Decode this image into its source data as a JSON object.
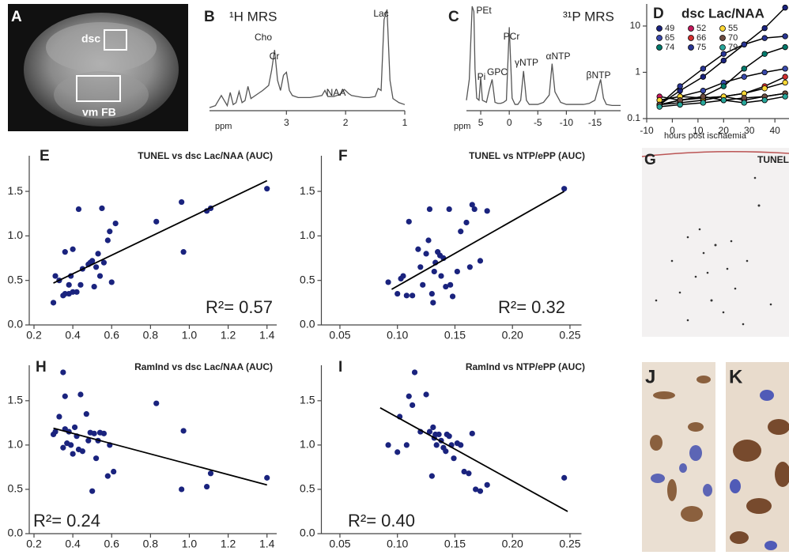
{
  "chart_data": [
    {
      "type": "line",
      "label": "B",
      "title": "¹H MRS",
      "color": "#555555",
      "x": [
        4.3,
        4.2,
        4.1,
        4.0,
        3.95,
        3.9,
        3.85,
        3.8,
        3.75,
        3.7,
        3.65,
        3.6,
        3.5,
        3.4,
        3.3,
        3.25,
        3.2,
        3.15,
        3.1,
        3.05,
        3.0,
        2.95,
        2.9,
        2.8,
        2.7,
        2.6,
        2.5,
        2.4,
        2.35,
        2.3,
        2.2,
        2.1,
        2.02,
        1.95,
        1.9,
        1.8,
        1.7,
        1.6,
        1.5,
        1.45,
        1.4,
        1.35,
        1.3,
        1.25,
        1.2,
        1.1,
        1.0
      ],
      "values": [
        0.03,
        0.05,
        0.15,
        0.05,
        0.18,
        0.06,
        0.08,
        0.19,
        0.08,
        0.1,
        0.24,
        0.12,
        0.16,
        0.2,
        0.25,
        0.4,
        0.6,
        0.3,
        0.2,
        0.35,
        0.38,
        0.2,
        0.15,
        0.13,
        0.13,
        0.13,
        0.14,
        0.15,
        0.2,
        0.14,
        0.14,
        0.16,
        0.21,
        0.17,
        0.15,
        0.14,
        0.13,
        0.13,
        0.14,
        0.22,
        0.2,
        0.9,
        1.0,
        0.3,
        0.12,
        0.08,
        0.06
      ],
      "xlim": [
        4.3,
        1.0
      ],
      "xticks": [
        3,
        2,
        1
      ],
      "ylim": [
        0,
        1
      ],
      "xlabel": "ppm",
      "annotations": [
        "Cho",
        "Cr",
        "NAA",
        "Lac"
      ]
    },
    {
      "type": "line",
      "label": "C",
      "title": "³¹P MRS",
      "color": "#555555",
      "x": [
        7.5,
        7,
        6.5,
        6.2,
        6,
        5.7,
        5.3,
        5,
        4.7,
        4,
        3.5,
        3,
        2.5,
        2,
        1.5,
        1,
        0.5,
        0,
        -0.5,
        -1,
        -1.5,
        -2,
        -2.5,
        -3,
        -3.5,
        -4,
        -5,
        -6,
        -7,
        -7.5,
        -8,
        -9,
        -10,
        -11,
        -12,
        -13,
        -14,
        -15,
        -15.5,
        -16,
        -16.5,
        -17,
        -18,
        -19.5
      ],
      "values": [
        0.1,
        0.3,
        1.0,
        0.95,
        0.4,
        0.12,
        0.1,
        0.32,
        0.1,
        0.08,
        0.2,
        0.3,
        0.08,
        0.07,
        0.07,
        0.08,
        0.1,
        0.8,
        0.12,
        0.06,
        0.06,
        0.1,
        0.38,
        0.1,
        0.06,
        0.06,
        0.06,
        0.08,
        0.15,
        0.45,
        0.18,
        0.08,
        0.06,
        0.06,
        0.06,
        0.06,
        0.07,
        0.1,
        0.2,
        0.3,
        0.12,
        0.06,
        0.05,
        0.05
      ],
      "xlim": [
        7.5,
        -19.5
      ],
      "xticks": [
        5,
        0,
        -5,
        -10,
        -15
      ],
      "ylim": [
        0,
        1
      ],
      "xlabel": "ppm",
      "annotations": [
        "PEt",
        "Pi",
        "GPC",
        "PCr",
        "γNTP",
        "αNTP",
        "βNTP"
      ]
    },
    {
      "type": "line",
      "label": "D",
      "title": "dsc Lac/NAA",
      "log_y": true,
      "x": [
        -5,
        3,
        12,
        20,
        28,
        36,
        44
      ],
      "series": [
        {
          "name": "49",
          "color": "#1a237e",
          "values": [
            0.2,
            0.4,
            0.8,
            1.8,
            4,
            9,
            25
          ]
        },
        {
          "name": "65",
          "color": "#3949ab",
          "values": [
            0.25,
            0.3,
            0.4,
            0.6,
            0.8,
            1.0,
            1.2
          ]
        },
        {
          "name": "74",
          "color": "#00796b",
          "values": [
            0.2,
            0.25,
            0.3,
            0.5,
            1.2,
            2.5,
            3.5
          ]
        },
        {
          "name": "52",
          "color": "#c2185b",
          "values": [
            0.3,
            0.25,
            0.28,
            0.3,
            0.25,
            0.3,
            0.35
          ]
        },
        {
          "name": "66",
          "color": "#d32f2f",
          "values": [
            0.2,
            0.22,
            0.25,
            0.3,
            0.35,
            0.5,
            0.8
          ]
        },
        {
          "name": "75",
          "color": "#283593",
          "values": [
            0.2,
            0.5,
            1.2,
            2.5,
            4,
            5.5,
            6
          ]
        },
        {
          "name": "55",
          "color": "#fdd835",
          "values": [
            0.25,
            0.3,
            0.28,
            0.3,
            0.35,
            0.45,
            0.6
          ]
        },
        {
          "name": "70",
          "color": "#6d4c41",
          "values": [
            0.2,
            0.25,
            0.3,
            0.25,
            0.28,
            0.3,
            0.35
          ]
        },
        {
          "name": "79",
          "color": "#26a69a",
          "values": [
            0.18,
            0.2,
            0.22,
            0.25,
            0.22,
            0.25,
            0.3
          ]
        }
      ],
      "xlim": [
        -10,
        45.5
      ],
      "xticks": [
        -10,
        0,
        10,
        20,
        30,
        40
      ],
      "ylim": [
        0.1,
        30
      ],
      "yticks": [
        0.1,
        1,
        10
      ],
      "xlabel": "hours post ischaemia"
    },
    {
      "type": "scatter",
      "label": "E",
      "title": "TUNEL vs dsc Lac/NAA (AUC)",
      "color": "#1a237e",
      "x": [
        0.3,
        0.31,
        0.33,
        0.35,
        0.36,
        0.36,
        0.38,
        0.38,
        0.39,
        0.4,
        0.4,
        0.42,
        0.43,
        0.44,
        0.45,
        0.48,
        0.49,
        0.5,
        0.51,
        0.52,
        0.53,
        0.54,
        0.55,
        0.56,
        0.58,
        0.59,
        0.6,
        0.62,
        0.83,
        0.96,
        0.97,
        1.09,
        1.11,
        1.4
      ],
      "values": [
        0.25,
        0.55,
        0.5,
        0.33,
        0.82,
        0.35,
        0.35,
        0.45,
        0.55,
        0.37,
        0.85,
        0.37,
        1.3,
        0.45,
        0.63,
        0.68,
        0.7,
        0.72,
        0.43,
        0.65,
        0.8,
        0.55,
        1.31,
        0.7,
        0.95,
        1.05,
        0.48,
        1.14,
        1.16,
        1.38,
        0.82,
        1.28,
        1.31,
        1.53
      ],
      "fit": {
        "x": [
          0.3,
          1.4
        ],
        "values": [
          0.47,
          1.62
        ]
      },
      "xlim": [
        0.2,
        1.45
      ],
      "xticks": [
        0.2,
        0.4,
        0.6,
        0.8,
        {
          "value": 1,
          "label": "1.0"
        },
        1.2,
        1.4
      ],
      "ylim": [
        0,
        1.9
      ],
      "yticks": [
        {
          "value": 0,
          "label": "0.0"
        },
        0.5,
        {
          "value": 1,
          "label": "1.0"
        },
        1.5
      ],
      "annotation": "R²= 0.57"
    },
    {
      "type": "scatter",
      "label": "F",
      "title": "TUNEL vs NTP/ePP (AUC)",
      "color": "#1a237e",
      "x": [
        0.092,
        0.1,
        0.103,
        0.105,
        0.108,
        0.11,
        0.113,
        0.118,
        0.12,
        0.122,
        0.125,
        0.127,
        0.128,
        0.13,
        0.131,
        0.132,
        0.133,
        0.135,
        0.137,
        0.138,
        0.14,
        0.142,
        0.145,
        0.146,
        0.148,
        0.152,
        0.155,
        0.16,
        0.163,
        0.165,
        0.167,
        0.172,
        0.178,
        0.245
      ],
      "values": [
        0.48,
        0.35,
        0.52,
        0.55,
        0.33,
        1.16,
        0.33,
        0.85,
        0.65,
        0.45,
        0.8,
        0.95,
        1.3,
        0.35,
        0.25,
        0.6,
        0.7,
        0.82,
        0.78,
        0.55,
        0.75,
        0.43,
        1.3,
        0.45,
        0.32,
        0.6,
        1.05,
        1.15,
        0.65,
        1.35,
        1.3,
        0.72,
        1.28,
        1.53
      ],
      "fit": {
        "x": [
          0.095,
          0.245
        ],
        "values": [
          0.4,
          1.5
        ]
      },
      "xlim": [
        0.038,
        0.26
      ],
      "xticks": [
        0.05,
        {
          "value": 0.1,
          "label": "0.10"
        },
        0.15,
        {
          "value": 0.2,
          "label": "0.20"
        },
        0.25
      ],
      "ylim": [
        0,
        1.9
      ],
      "yticks": [
        {
          "value": 0,
          "label": "0.0"
        },
        0.5,
        {
          "value": 1,
          "label": "1.0"
        },
        1.5
      ],
      "annotation": "R²= 0.32"
    },
    {
      "type": "scatter",
      "label": "H",
      "title": "RamInd vs dsc Lac/NAA (AUC)",
      "color": "#1a237e",
      "x": [
        0.3,
        0.31,
        0.33,
        0.35,
        0.35,
        0.36,
        0.36,
        0.37,
        0.38,
        0.39,
        0.4,
        0.41,
        0.42,
        0.43,
        0.44,
        0.45,
        0.47,
        0.48,
        0.49,
        0.5,
        0.51,
        0.52,
        0.53,
        0.54,
        0.56,
        0.58,
        0.59,
        0.61,
        0.83,
        0.96,
        0.97,
        1.09,
        1.11,
        1.4
      ],
      "values": [
        1.12,
        1.15,
        1.32,
        1.82,
        0.97,
        1.55,
        1.18,
        1.02,
        1.15,
        1.0,
        0.9,
        1.2,
        1.1,
        0.95,
        1.57,
        0.93,
        1.35,
        1.05,
        1.14,
        0.48,
        1.13,
        0.85,
        1.05,
        1.14,
        1.13,
        0.65,
        1.0,
        0.7,
        1.47,
        0.5,
        1.16,
        0.53,
        0.68,
        0.63
      ],
      "fit": {
        "x": [
          0.3,
          1.4
        ],
        "values": [
          1.19,
          0.55
        ]
      },
      "xlim": [
        0.2,
        1.45
      ],
      "xticks": [
        0.2,
        0.4,
        0.6,
        0.8,
        {
          "value": 1,
          "label": "1.0"
        },
        1.2,
        1.4
      ],
      "ylim": [
        0,
        1.9
      ],
      "yticks": [
        {
          "value": 0,
          "label": "0.0"
        },
        0.5,
        {
          "value": 1,
          "label": "1.0"
        },
        1.5
      ],
      "annotation": "R²= 0.24"
    },
    {
      "type": "scatter",
      "label": "I",
      "title": "RamInd vs NTP/ePP (AUC)",
      "color": "#1a237e",
      "x": [
        0.092,
        0.1,
        0.102,
        0.108,
        0.11,
        0.113,
        0.115,
        0.12,
        0.125,
        0.128,
        0.13,
        0.131,
        0.132,
        0.133,
        0.134,
        0.136,
        0.138,
        0.14,
        0.142,
        0.143,
        0.145,
        0.147,
        0.149,
        0.152,
        0.155,
        0.158,
        0.162,
        0.165,
        0.168,
        0.172,
        0.178,
        0.245
      ],
      "values": [
        1.0,
        0.92,
        1.32,
        1.0,
        1.55,
        1.45,
        1.82,
        1.15,
        1.57,
        1.15,
        0.65,
        1.2,
        1.08,
        1.12,
        1.0,
        1.12,
        1.05,
        0.97,
        0.93,
        1.12,
        1.1,
        1.0,
        0.85,
        1.02,
        1.0,
        0.7,
        0.68,
        1.13,
        0.5,
        0.48,
        0.55,
        0.63
      ],
      "fit": {
        "x": [
          0.085,
          0.248
        ],
        "values": [
          1.42,
          0.25
        ]
      },
      "xlim": [
        0.038,
        0.26
      ],
      "xticks": [
        0.05,
        {
          "value": 0.1,
          "label": "0.10"
        },
        0.15,
        {
          "value": 0.2,
          "label": "0.20"
        },
        0.25
      ],
      "ylim": [
        0,
        1.9
      ],
      "yticks": [
        {
          "value": 0,
          "label": "0.0"
        },
        0.5,
        {
          "value": 1,
          "label": "1.0"
        },
        1.5
      ],
      "annotation": "R²= 0.40"
    }
  ],
  "images": [
    {
      "label": "A",
      "annotations": [
        "dsc",
        "vm FB"
      ]
    },
    {
      "label": "G",
      "annotations": [
        "TUNEL"
      ]
    },
    {
      "label": "J"
    },
    {
      "label": "K"
    }
  ]
}
